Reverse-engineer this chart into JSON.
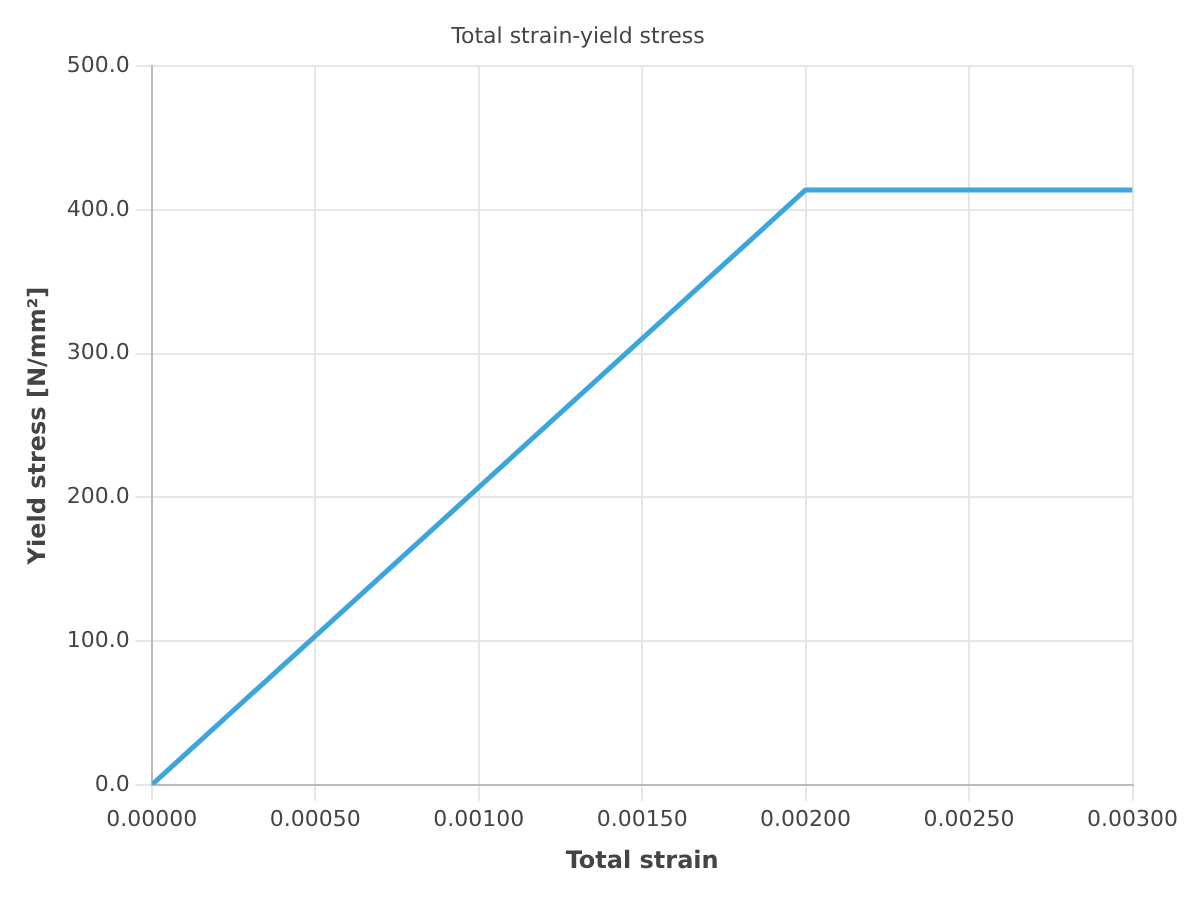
{
  "chart_data": {
    "type": "line",
    "title": "Total strain-yield stress",
    "xlabel": "Total strain",
    "ylabel": "Yield stress [N/mm²]",
    "x": [
      0,
      0.002,
      0.003
    ],
    "series": [
      {
        "color": "#3aa6dd",
        "values": [
          0,
          414,
          414
        ]
      }
    ],
    "xlim": [
      0,
      0.003
    ],
    "xticks": [
      {
        "value": 0,
        "label": "0.00000"
      },
      {
        "value": 0.0005,
        "label": "0.00050"
      },
      {
        "value": 0.001,
        "label": "0.00100"
      },
      {
        "value": 0.0015,
        "label": "0.00150"
      },
      {
        "value": 0.002,
        "label": "0.00200"
      },
      {
        "value": 0.0025,
        "label": "0.00250"
      },
      {
        "value": 0.003,
        "label": "0.00300"
      }
    ],
    "ylim": [
      0,
      500
    ],
    "yticks": [
      {
        "value": 0,
        "label": "0.0"
      },
      {
        "value": 100,
        "label": "100.0"
      },
      {
        "value": 200,
        "label": "200.0"
      },
      {
        "value": 300,
        "label": "300.0"
      },
      {
        "value": 400,
        "label": "400.0"
      },
      {
        "value": 500,
        "label": "500.0"
      }
    ],
    "grid": true,
    "legend": false,
    "marker": "none",
    "line_style": "solid"
  }
}
